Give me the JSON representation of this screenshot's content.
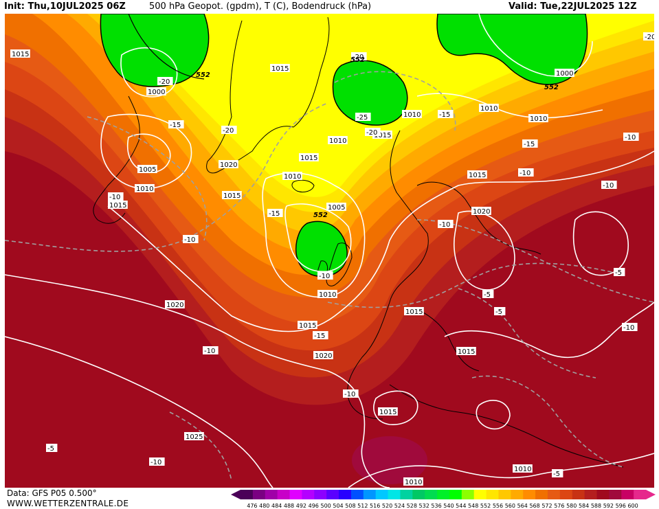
{
  "header": {
    "init": "Init: Thu,10JUL2025 06Z",
    "title": "500 hPa Geopot. (gpdm), T (C), Bodendruck (hPa)",
    "valid": "Valid: Tue,22JUL2025 12Z"
  },
  "footer": {
    "data_source": "Data: GFS P05 0.500°",
    "website": "WWW.WETTERZENTRALE.DE"
  },
  "legend": {
    "values": [
      "476",
      "480",
      "484",
      "488",
      "492",
      "496",
      "500",
      "504",
      "508",
      "512",
      "516",
      "520",
      "524",
      "528",
      "532",
      "536",
      "540",
      "544",
      "548",
      "552",
      "556",
      "560",
      "564",
      "568",
      "572",
      "576",
      "580",
      "584",
      "588",
      "592",
      "596",
      "600"
    ],
    "colors": [
      "#4b0058",
      "#7a0082",
      "#a000a8",
      "#c800c8",
      "#e000ff",
      "#b400ff",
      "#8c00ff",
      "#5a00ff",
      "#2800ff",
      "#0050ff",
      "#0096ff",
      "#00c8ff",
      "#00e6e6",
      "#00d2a0",
      "#00c864",
      "#00dc50",
      "#00f028",
      "#00ff00",
      "#8cff00",
      "#ffff00",
      "#ffe600",
      "#ffc800",
      "#ffaa00",
      "#ff8c00",
      "#f07000",
      "#e65a14",
      "#dc4614",
      "#c83214",
      "#b41e1e",
      "#a00a1e",
      "#a00a3c",
      "#c80064",
      "#e6288c"
    ]
  },
  "map_labels": {
    "pressure": [
      "1015",
      "1000",
      "1015",
      "1005",
      "1010",
      "1015",
      "1015",
      "1020",
      "1015",
      "1010",
      "1000",
      "1010",
      "1015",
      "1010",
      "1010",
      "1015",
      "1005",
      "1020",
      "1010",
      "1020",
      "1010",
      "1015",
      "1015",
      "1020",
      "1015",
      "1015",
      "1025",
      "1010",
      "1010"
    ],
    "temperature": [
      "-20",
      "-15",
      "-20",
      "-20",
      "-25",
      "-20",
      "-15",
      "-15",
      "-10",
      "-15",
      "-10",
      "-10",
      "-20",
      "-10",
      "-10",
      "-10",
      "-5",
      "-5",
      "-5",
      "-10",
      "-10",
      "-15",
      "-10",
      "-5",
      "-10",
      "-5",
      "-10"
    ],
    "geopotential": [
      "552",
      "552",
      "552",
      "552"
    ]
  }
}
